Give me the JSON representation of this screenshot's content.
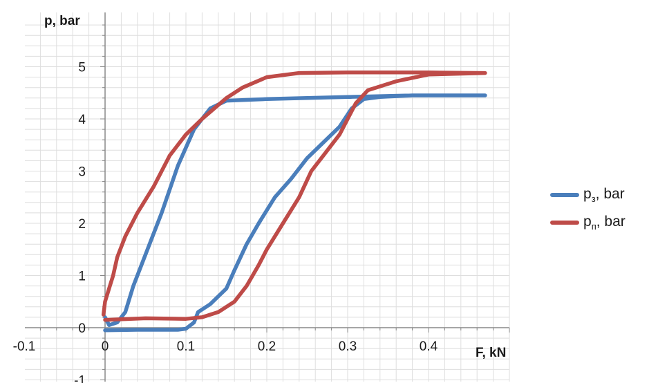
{
  "chart_data": {
    "type": "line",
    "xlabel": "F, kN",
    "ylabel": "p, bar",
    "xlim": [
      -0.1,
      0.5
    ],
    "ylim": [
      -1,
      5.8
    ],
    "x_ticks": [
      -0.1,
      0,
      0.1,
      0.2,
      0.3,
      0.4
    ],
    "x_tick_labels": [
      "-0.1",
      "0",
      "0.1",
      "0.2",
      "0.3",
      "0.4"
    ],
    "y_ticks": [
      -1,
      0,
      1,
      2,
      3,
      4,
      5
    ],
    "y_tick_labels": [
      "-1",
      "0",
      "1",
      "2",
      "3",
      "4",
      "5"
    ],
    "grid": true,
    "legend_position": "right",
    "series": [
      {
        "name_main": "p",
        "name_sub": "з",
        "name_suffix": ", bar",
        "color": "#4a7ebb",
        "points": [
          [
            0,
            -0.05
          ],
          [
            0.04,
            -0.04
          ],
          [
            0.09,
            -0.04
          ],
          [
            0.1,
            -0.02
          ],
          [
            0.11,
            0.1
          ],
          [
            0.115,
            0.3
          ],
          [
            0.13,
            0.45
          ],
          [
            0.14,
            0.6
          ],
          [
            0.15,
            0.75
          ],
          [
            0.16,
            1.1
          ],
          [
            0.175,
            1.6
          ],
          [
            0.19,
            2.0
          ],
          [
            0.21,
            2.5
          ],
          [
            0.23,
            2.85
          ],
          [
            0.25,
            3.25
          ],
          [
            0.27,
            3.55
          ],
          [
            0.29,
            3.85
          ],
          [
            0.305,
            4.2
          ],
          [
            0.32,
            4.38
          ],
          [
            0.34,
            4.42
          ],
          [
            0.38,
            4.45
          ],
          [
            0.47,
            4.45
          ],
          [
            0.38,
            4.45
          ],
          [
            0.3,
            4.42
          ],
          [
            0.2,
            4.38
          ],
          [
            0.15,
            4.35
          ],
          [
            0.13,
            4.2
          ],
          [
            0.11,
            3.8
          ],
          [
            0.09,
            3.1
          ],
          [
            0.07,
            2.2
          ],
          [
            0.05,
            1.4
          ],
          [
            0.035,
            0.8
          ],
          [
            0.025,
            0.3
          ],
          [
            0.015,
            0.1
          ],
          [
            0.005,
            0.05
          ],
          [
            0,
            0.2
          ]
        ]
      },
      {
        "name_main": "p",
        "name_sub": "п",
        "name_suffix": ", bar",
        "color": "#be4b48",
        "points": [
          [
            0,
            0.15
          ],
          [
            0.05,
            0.18
          ],
          [
            0.1,
            0.17
          ],
          [
            0.12,
            0.2
          ],
          [
            0.14,
            0.3
          ],
          [
            0.16,
            0.5
          ],
          [
            0.175,
            0.8
          ],
          [
            0.19,
            1.2
          ],
          [
            0.2,
            1.5
          ],
          [
            0.22,
            2.0
          ],
          [
            0.24,
            2.5
          ],
          [
            0.255,
            3.0
          ],
          [
            0.27,
            3.3
          ],
          [
            0.29,
            3.7
          ],
          [
            0.3,
            4.0
          ],
          [
            0.31,
            4.3
          ],
          [
            0.325,
            4.55
          ],
          [
            0.36,
            4.72
          ],
          [
            0.4,
            4.85
          ],
          [
            0.47,
            4.88
          ],
          [
            0.4,
            4.89
          ],
          [
            0.3,
            4.89
          ],
          [
            0.24,
            4.88
          ],
          [
            0.2,
            4.8
          ],
          [
            0.17,
            4.6
          ],
          [
            0.15,
            4.4
          ],
          [
            0.12,
            4.0
          ],
          [
            0.1,
            3.7
          ],
          [
            0.08,
            3.3
          ],
          [
            0.06,
            2.7
          ],
          [
            0.04,
            2.2
          ],
          [
            0.025,
            1.75
          ],
          [
            0.015,
            1.35
          ],
          [
            0.01,
            1.0
          ],
          [
            0.005,
            0.75
          ],
          [
            0,
            0.5
          ],
          [
            -0.002,
            0.25
          ]
        ]
      }
    ]
  }
}
